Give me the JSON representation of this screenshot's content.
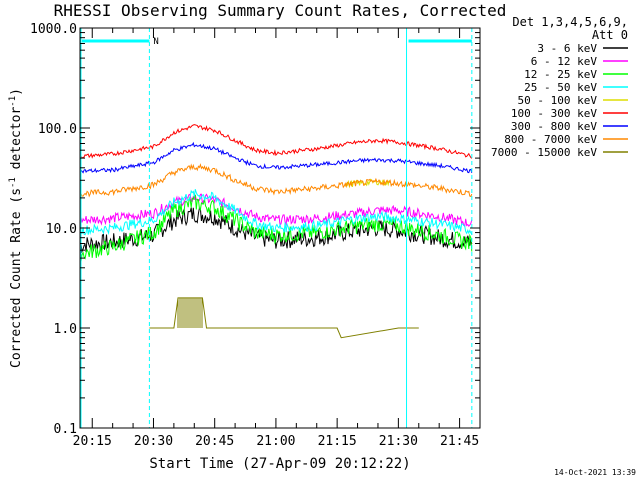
{
  "chart_data": {
    "type": "line",
    "title": "RHESSI Observing Summary Count Rates, Corrected",
    "xlabel": "Start Time (27-Apr-09 20:12:22)",
    "ylabel_prefix": "Corrected Count Rate (s",
    "ylabel_sup1": "-1",
    "ylabel_mid": " detector",
    "ylabel_sup2": "-1",
    "ylabel_suffix": ")",
    "y_scale": "log",
    "ylim": [
      0.1,
      1000
    ],
    "xlim": [
      "20:12",
      "21:50"
    ],
    "x_ticks": [
      "20:15",
      "20:30",
      "20:45",
      "21:00",
      "21:15",
      "21:30",
      "21:45"
    ],
    "y_ticks": [
      "0.1",
      "1.0",
      "10.0",
      "100.0",
      "1000.0"
    ],
    "legend": {
      "placement": "right",
      "header1": "Det 1,3,4,5,6,9,",
      "header2": "Att 0"
    },
    "footer_date": "14-Oct-2021 13:39",
    "marker_label": "N",
    "night_bars": [
      {
        "start": "20:12",
        "end": "20:29"
      },
      {
        "start": "21:32",
        "end": "21:48"
      }
    ],
    "vlines_solid": [
      "20:12",
      "21:32"
    ],
    "vlines_dashed": [
      "20:29",
      "21:48"
    ],
    "series": [
      {
        "name": "3 - 6 keV",
        "color": "#000000",
        "x": [
          "20:12",
          "20:20",
          "20:30",
          "20:35",
          "20:40",
          "20:45",
          "20:50",
          "20:55",
          "21:00",
          "21:10",
          "21:20",
          "21:25",
          "21:30",
          "21:40",
          "21:48"
        ],
        "y": [
          6.8,
          7.2,
          8.5,
          12,
          14,
          13,
          10,
          8,
          7.5,
          8,
          9.5,
          10,
          9.5,
          8,
          7
        ]
      },
      {
        "name": "6 - 12 keV",
        "color": "#ff00ff",
        "x": [
          "20:12",
          "20:20",
          "20:30",
          "20:35",
          "20:40",
          "20:45",
          "20:50",
          "20:55",
          "21:00",
          "21:10",
          "21:20",
          "21:25",
          "21:30",
          "21:40",
          "21:48"
        ],
        "y": [
          12,
          12.5,
          14,
          18,
          20,
          19,
          16,
          13,
          12,
          12.5,
          14,
          15,
          15,
          13,
          11
        ]
      },
      {
        "name": "12 - 25 keV",
        "color": "#00ff00",
        "x": [
          "20:12",
          "20:20",
          "20:30",
          "20:35",
          "20:40",
          "20:45",
          "20:50",
          "20:55",
          "21:00",
          "21:10",
          "21:20",
          "21:25",
          "21:30",
          "21:40",
          "21:48"
        ],
        "y": [
          5.5,
          6.5,
          9,
          15,
          18,
          16,
          12,
          9,
          8.5,
          9,
          10.5,
          11,
          10.5,
          8.5,
          7
        ]
      },
      {
        "name": "25 - 50 keV",
        "color": "#00ffff",
        "x": [
          "20:12",
          "20:20",
          "20:30",
          "20:35",
          "20:40",
          "20:45",
          "20:50",
          "20:55",
          "21:00",
          "21:10",
          "21:20",
          "21:25",
          "21:30",
          "21:40",
          "21:48"
        ],
        "y": [
          9.5,
          10,
          12,
          18,
          22,
          20,
          15,
          11,
          10,
          10.5,
          12.5,
          13,
          12.5,
          11,
          9.5
        ]
      },
      {
        "name": "50 - 100 keV",
        "color": "#dddd00",
        "x": [
          "21:17",
          "21:20",
          "21:25",
          "21:28"
        ],
        "y": [
          27,
          28,
          29,
          28
        ]
      },
      {
        "name": "100 - 300 keV",
        "color": "#ff0000",
        "x": [
          "20:12",
          "20:20",
          "20:30",
          "20:35",
          "20:40",
          "20:45",
          "20:50",
          "20:55",
          "21:00",
          "21:10",
          "21:20",
          "21:25",
          "21:30",
          "21:40",
          "21:48"
        ],
        "y": [
          52,
          55,
          65,
          90,
          105,
          95,
          75,
          60,
          56,
          62,
          72,
          75,
          72,
          62,
          52
        ]
      },
      {
        "name": "300 - 800 keV",
        "color": "#0000ff",
        "x": [
          "20:12",
          "20:20",
          "20:30",
          "20:35",
          "20:40",
          "20:45",
          "20:50",
          "20:55",
          "21:00",
          "21:10",
          "21:20",
          "21:25",
          "21:30",
          "21:40",
          "21:48"
        ],
        "y": [
          37,
          38,
          45,
          60,
          68,
          62,
          50,
          42,
          40,
          43,
          47,
          48,
          47,
          42,
          37
        ]
      },
      {
        "name": "800 - 7000 keV",
        "color": "#ff8800",
        "x": [
          "20:12",
          "20:20",
          "20:30",
          "20:35",
          "20:40",
          "20:45",
          "20:50",
          "20:55",
          "21:00",
          "21:10",
          "21:20",
          "21:25",
          "21:30",
          "21:40",
          "21:48"
        ],
        "y": [
          22,
          23,
          27,
          36,
          41,
          38,
          30,
          25,
          23,
          25,
          28,
          29,
          28,
          25,
          22
        ]
      },
      {
        "name": "7000 - 15000 keV",
        "color": "#808000",
        "x": [
          "20:29",
          "20:35",
          "20:36",
          "20:42",
          "20:43",
          "20:52",
          "21:15",
          "21:16",
          "21:30",
          "21:35"
        ],
        "y": [
          1,
          1,
          2,
          2,
          1,
          1,
          1,
          0.8,
          1,
          1
        ]
      }
    ]
  }
}
